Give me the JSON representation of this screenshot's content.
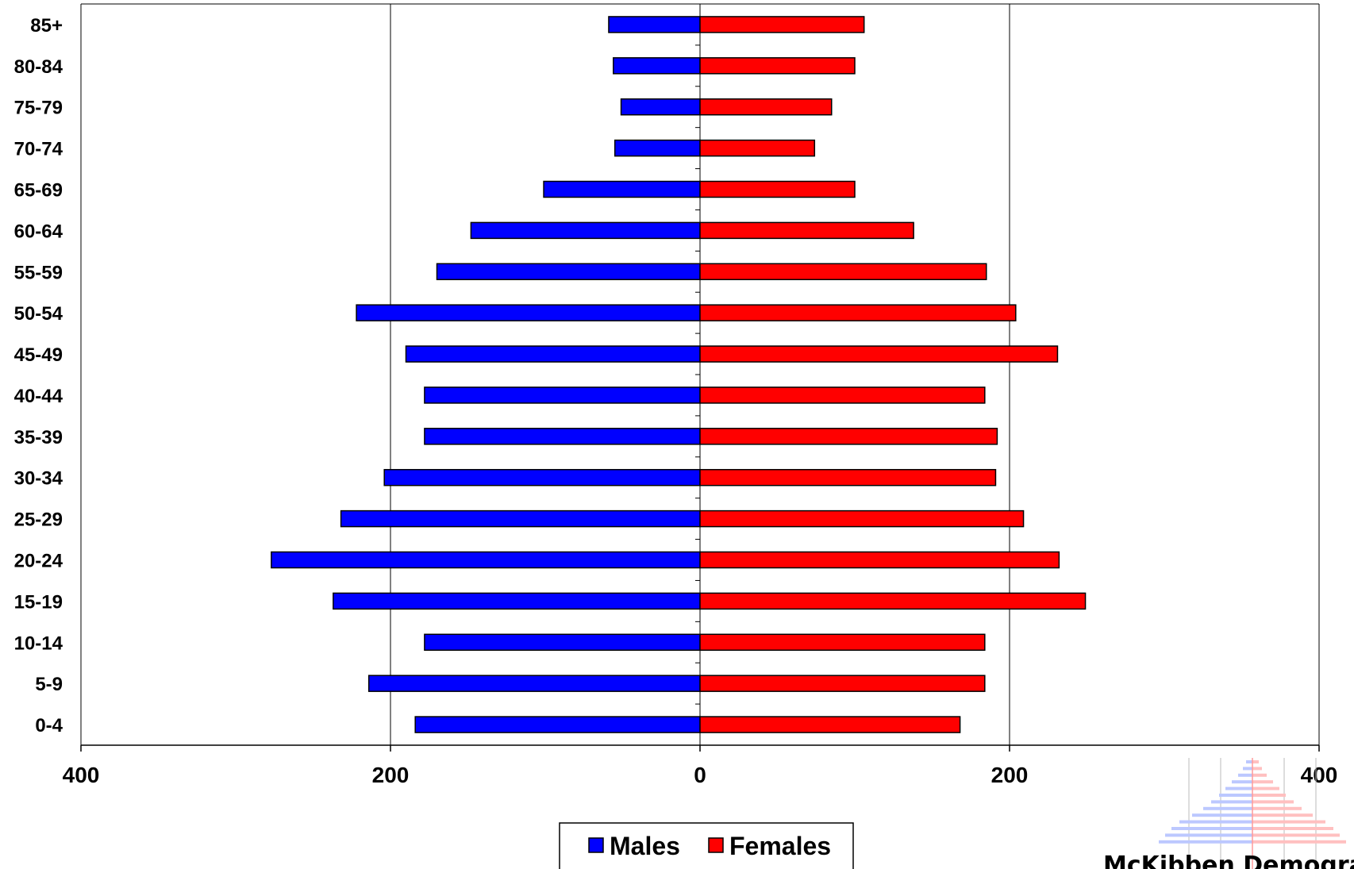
{
  "chart_data": {
    "type": "bar",
    "orientation": "horizontal-population-pyramid",
    "categories": [
      "85+",
      "80-84",
      "75-79",
      "70-74",
      "65-69",
      "60-64",
      "55-59",
      "50-54",
      "45-49",
      "40-44",
      "35-39",
      "30-34",
      "25-29",
      "20-24",
      "15-19",
      "10-14",
      "5-9",
      "0-4"
    ],
    "series": [
      {
        "name": "Males",
        "color": "#0000FF",
        "values": [
          59,
          56,
          51,
          55,
          101,
          148,
          170,
          222,
          190,
          178,
          178,
          204,
          232,
          277,
          237,
          178,
          214,
          184
        ]
      },
      {
        "name": "Females",
        "color": "#FF0000",
        "values": [
          106,
          100,
          85,
          74,
          100,
          138,
          185,
          204,
          231,
          184,
          192,
          191,
          209,
          232,
          249,
          184,
          184,
          168
        ]
      }
    ],
    "x_tick_labels": [
      "400",
      "200",
      "0",
      "200",
      "400"
    ],
    "xlim": [
      -400,
      400
    ],
    "grid": "vertical lines at 200 intervals",
    "legend_placement": "bottom-center",
    "title": "",
    "xlabel": "",
    "ylabel": ""
  },
  "watermark": {
    "text": "McKibben Demographi"
  }
}
